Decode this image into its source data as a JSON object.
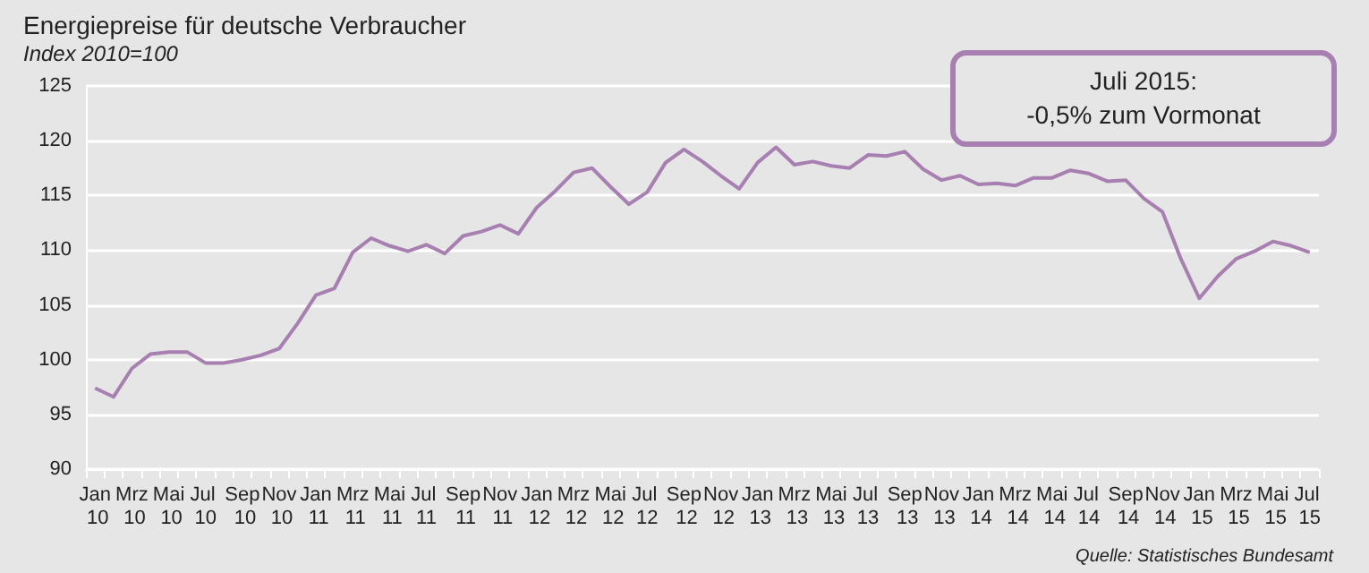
{
  "chart_data": {
    "type": "line",
    "title": "Energiepreise für deutsche Verbraucher",
    "subtitle": "Index 2010=100",
    "categories": [
      "Jan 10",
      null,
      "Mrz 10",
      null,
      "Mai 10",
      null,
      "Jul 10",
      null,
      "Sep 10",
      null,
      "Nov 10",
      null,
      "Jan 11",
      null,
      "Mrz 11",
      null,
      "Mai 11",
      null,
      "Jul 11",
      null,
      "Sep 11",
      null,
      "Nov 11",
      null,
      "Jan 12",
      null,
      "Mrz 12",
      null,
      "Mai 12",
      null,
      "Jul 12",
      null,
      "Sep 12",
      null,
      "Nov 12",
      null,
      "Jan 13",
      null,
      "Mrz 13",
      null,
      "Mai 13",
      null,
      "Jul 13",
      null,
      "Sep 13",
      null,
      "Nov 13",
      null,
      "Jan 14",
      null,
      "Mrz 14",
      null,
      "Mai 14",
      null,
      "Jul 14",
      null,
      "Sep 14",
      null,
      "Nov 14",
      null,
      "Jan 15",
      null,
      "Mrz 15",
      null,
      "Mai 15",
      null,
      "Jul 15"
    ],
    "values": [
      97.4,
      96.6,
      99.2,
      100.5,
      100.7,
      100.7,
      99.7,
      99.7,
      100.0,
      100.4,
      101.0,
      103.3,
      105.9,
      106.5,
      109.8,
      111.1,
      110.4,
      109.9,
      110.5,
      109.7,
      111.3,
      111.7,
      112.3,
      111.5,
      113.9,
      115.4,
      117.1,
      117.5,
      115.8,
      114.2,
      115.3,
      118.0,
      119.2,
      118.1,
      116.8,
      115.6,
      118.0,
      119.4,
      117.8,
      118.1,
      117.7,
      117.5,
      118.7,
      118.6,
      119.0,
      117.4,
      116.4,
      116.8,
      116.0,
      116.1,
      115.9,
      116.6,
      116.6,
      117.3,
      117.0,
      116.3,
      116.4,
      114.7,
      113.5,
      109.2,
      105.6,
      107.6,
      109.2,
      109.9,
      110.8,
      110.4,
      109.8
    ],
    "color": "#a77fb0",
    "ylim": [
      90,
      125
    ],
    "yticks": [
      90,
      95,
      100,
      105,
      110,
      115,
      120,
      125
    ],
    "grid": "y",
    "marker": "none",
    "line_style": "solid",
    "annotations": [
      "Juli 2015:\n-0,5% zum Vormonat",
      "Quelle: Statistisches Bundesamt"
    ]
  }
}
